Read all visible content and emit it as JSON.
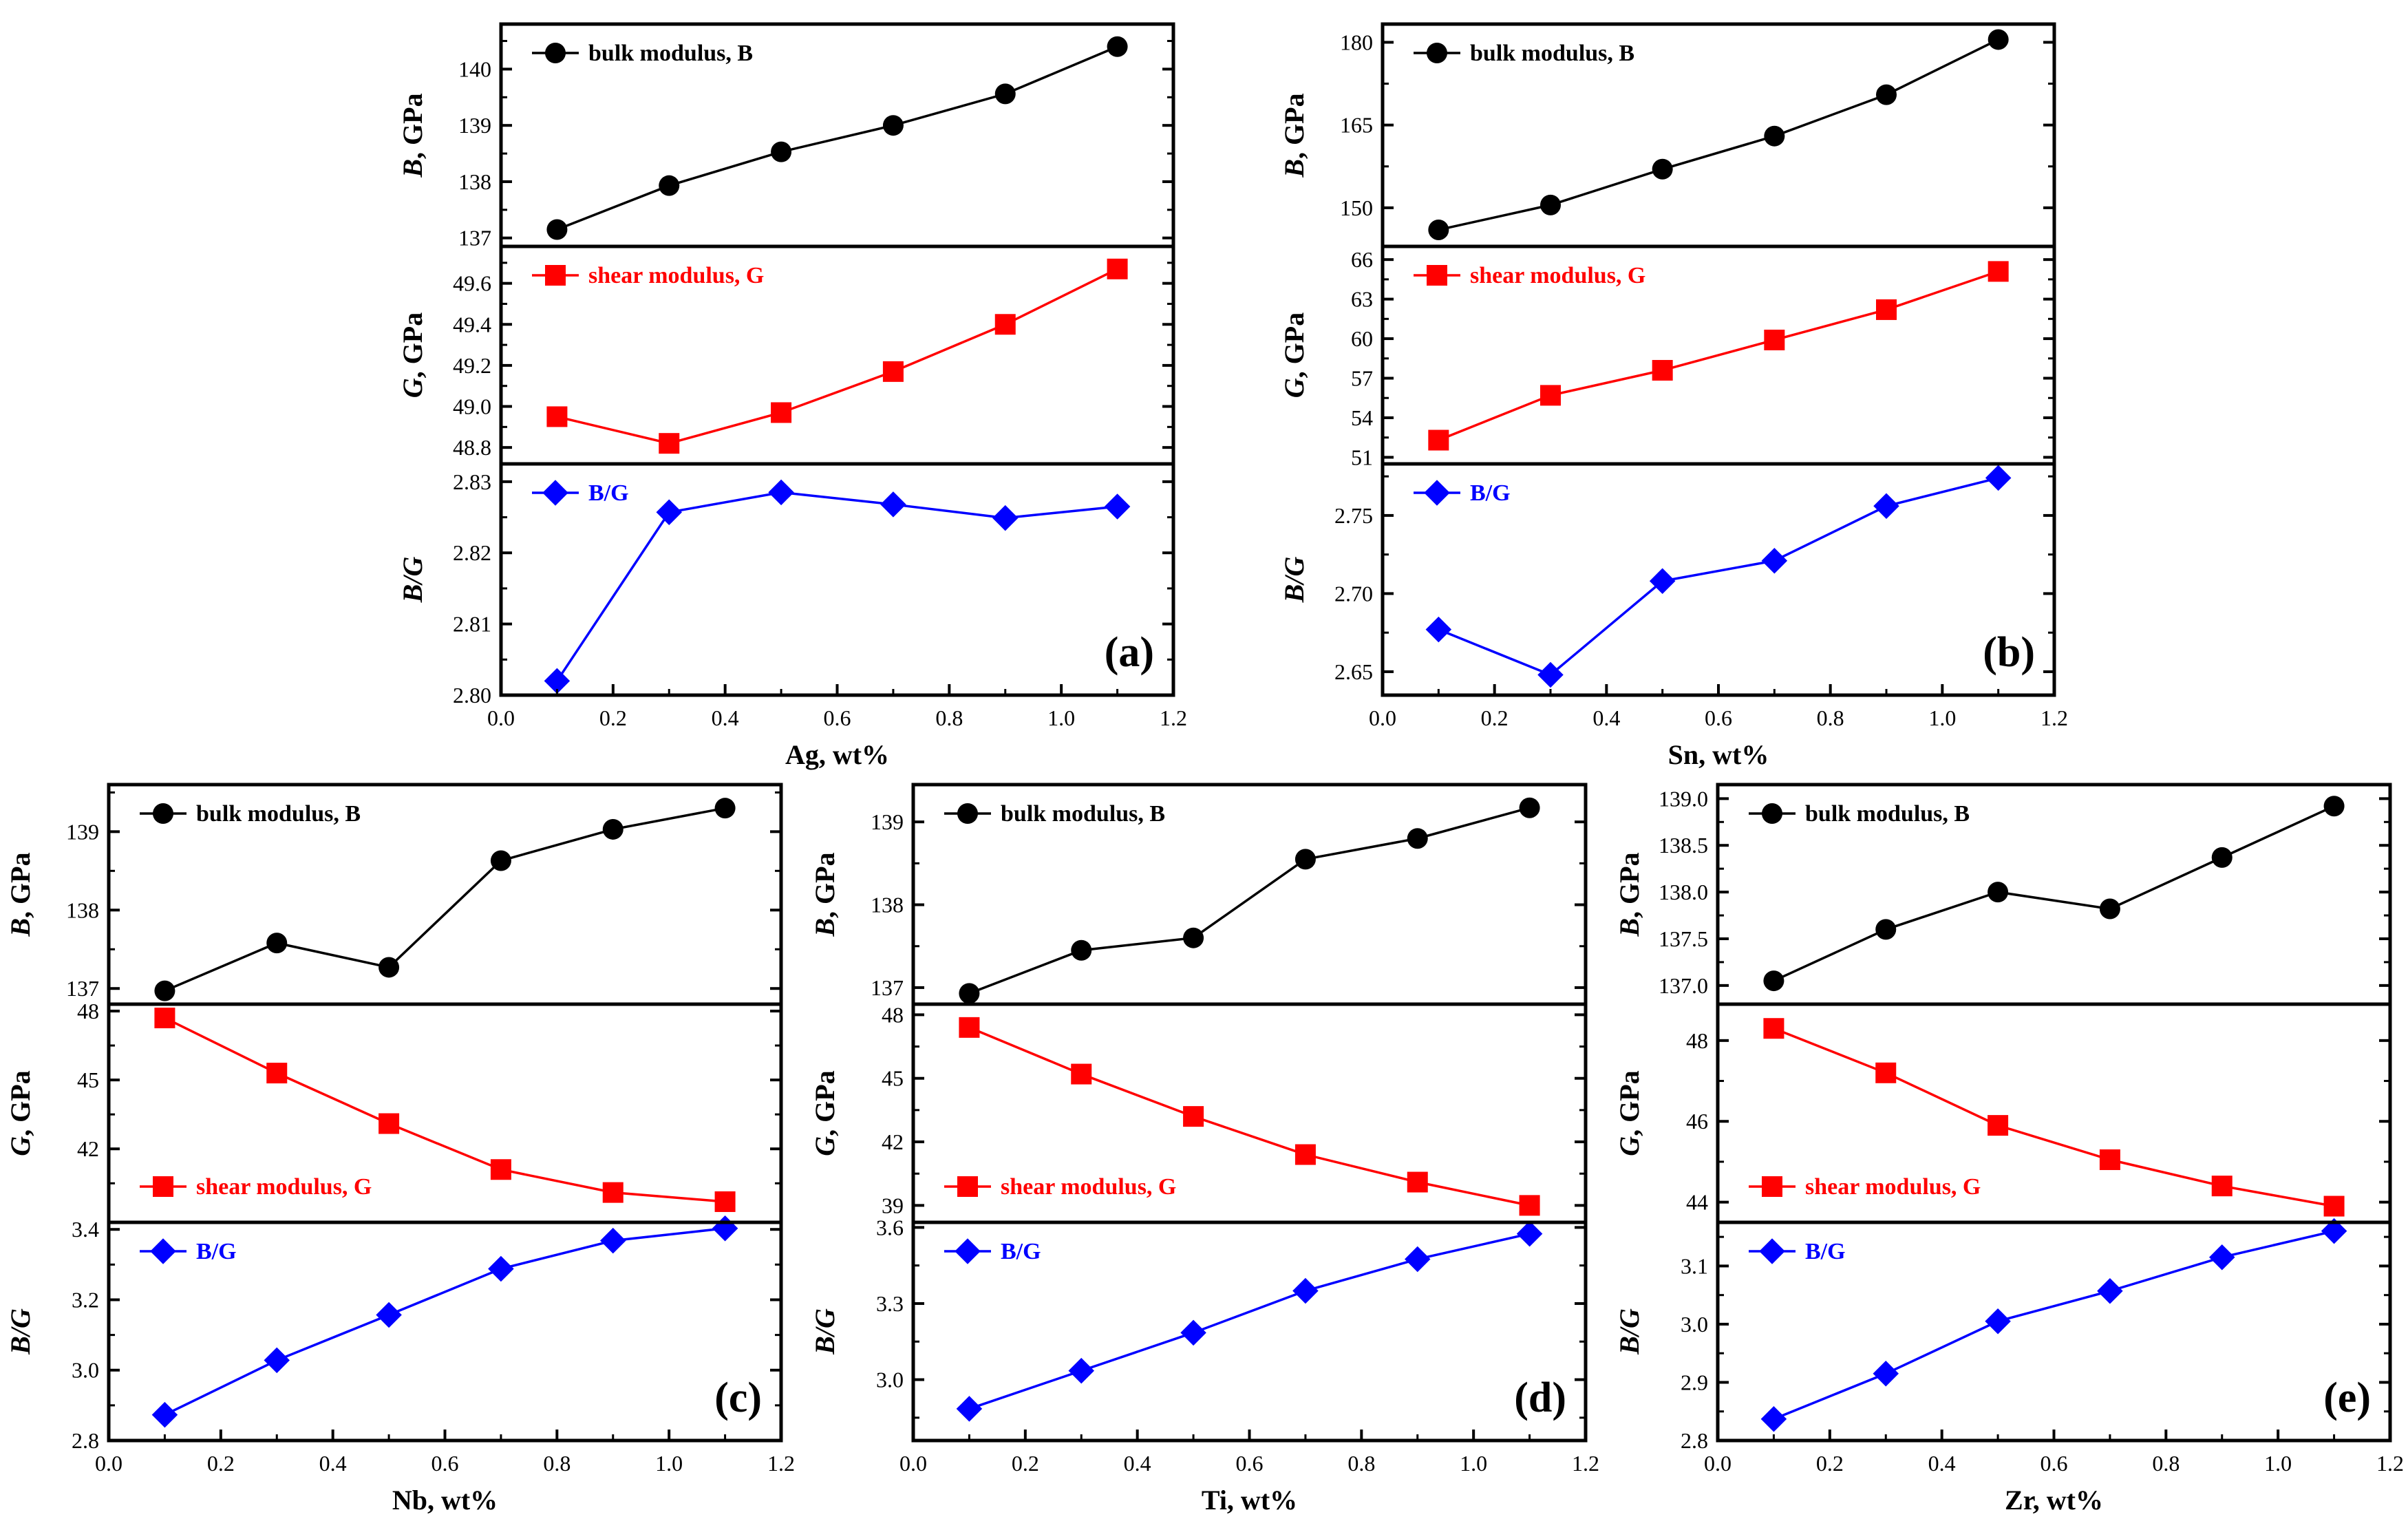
{
  "figure_title": "",
  "colors": {
    "B": "#000000",
    "G": "#ff0000",
    "BG": "#0000ff"
  },
  "chart_data": [
    {
      "type": "line",
      "panel_label": "(a)",
      "xlabel": "Ag, wt%",
      "xlim": [
        0.0,
        1.2
      ],
      "xticks": [
        "0.0",
        "0.2",
        "0.4",
        "0.6",
        "0.8",
        "1.0",
        "1.2"
      ],
      "x": [
        0.1,
        0.3,
        0.5,
        0.7,
        0.9,
        1.1
      ],
      "subplots": [
        {
          "key": "B",
          "ylabel_main": "B",
          "ylabel_rest": ", GPa",
          "legend": "bulk modulus, B",
          "legend_pos": "top-left",
          "marker": "circle",
          "values": [
            137.15,
            137.93,
            138.53,
            139.0,
            139.56,
            140.4
          ],
          "ylim": [
            136.85,
            140.8
          ],
          "yticks": [
            "137",
            "138",
            "139",
            "140"
          ]
        },
        {
          "key": "G",
          "ylabel_main": "G",
          "ylabel_rest": ", GPa",
          "legend": "shear modulus, G",
          "legend_pos": "top-left",
          "marker": "square",
          "values": [
            48.95,
            48.82,
            48.97,
            49.17,
            49.4,
            49.67
          ],
          "ylim": [
            48.72,
            49.78
          ],
          "yticks": [
            "48.8",
            "49.0",
            "49.2",
            "49.4",
            "49.6"
          ]
        },
        {
          "key": "BG",
          "ylabel_main": "B/G",
          "ylabel_rest": "",
          "legend": "B/G",
          "legend_pos": "top-left",
          "marker": "diamond",
          "values": [
            2.802,
            2.8257,
            2.8285,
            2.8268,
            2.8249,
            2.8265
          ],
          "ylim": [
            2.8,
            2.8325
          ],
          "yticks": [
            "2.80",
            "2.81",
            "2.82",
            "2.83"
          ]
        }
      ]
    },
    {
      "type": "line",
      "panel_label": "(b)",
      "xlabel": "Sn, wt%",
      "xlim": [
        0.0,
        1.2
      ],
      "xticks": [
        "0.0",
        "0.2",
        "0.4",
        "0.6",
        "0.8",
        "1.0",
        "1.2"
      ],
      "x": [
        0.1,
        0.3,
        0.5,
        0.7,
        0.9,
        1.1
      ],
      "subplots": [
        {
          "key": "B",
          "ylabel_main": "B",
          "ylabel_rest": ", GPa",
          "legend": "bulk modulus, B",
          "legend_pos": "top-left",
          "marker": "circle",
          "values": [
            146.0,
            150.5,
            157.0,
            163.0,
            170.5,
            180.5
          ],
          "ylim": [
            143.0,
            183.3
          ],
          "yticks": [
            "150",
            "165",
            "180"
          ]
        },
        {
          "key": "G",
          "ylabel_main": "G",
          "ylabel_rest": ", GPa",
          "legend": "shear modulus, G",
          "legend_pos": "top-left",
          "marker": "square",
          "values": [
            52.3,
            55.7,
            57.6,
            59.9,
            62.2,
            65.1
          ],
          "ylim": [
            50.5,
            67.0
          ],
          "yticks": [
            "51",
            "54",
            "57",
            "60",
            "63",
            "66"
          ]
        },
        {
          "key": "BG",
          "ylabel_main": "B/G",
          "ylabel_rest": "",
          "legend": "B/G",
          "legend_pos": "top-left",
          "marker": "diamond",
          "values": [
            2.677,
            2.648,
            2.708,
            2.721,
            2.756,
            2.774
          ],
          "ylim": [
            2.635,
            2.783
          ],
          "yticks": [
            "2.65",
            "2.70",
            "2.75"
          ]
        }
      ]
    },
    {
      "type": "line",
      "panel_label": "(c)",
      "xlabel": "Nb, wt%",
      "xlim": [
        0.0,
        1.2
      ],
      "xticks": [
        "0.0",
        "0.2",
        "0.4",
        "0.6",
        "0.8",
        "1.0",
        "1.2"
      ],
      "x": [
        0.1,
        0.3,
        0.5,
        0.7,
        0.9,
        1.1
      ],
      "subplots": [
        {
          "key": "B",
          "ylabel_main": "B",
          "ylabel_rest": ", GPa",
          "legend": "bulk modulus, B",
          "legend_pos": "top-left",
          "marker": "circle",
          "values": [
            136.97,
            137.58,
            137.27,
            138.63,
            139.03,
            139.3
          ],
          "ylim": [
            136.8,
            139.6
          ],
          "yticks": [
            "137",
            "138",
            "139"
          ]
        },
        {
          "key": "G",
          "ylabel_main": "G",
          "ylabel_rest": ", GPa",
          "legend": "shear modulus, G",
          "legend_pos": "bottom-left",
          "marker": "square",
          "values": [
            47.7,
            45.3,
            43.1,
            41.1,
            40.1,
            39.7
          ],
          "ylim": [
            38.8,
            48.3
          ],
          "yticks": [
            "42",
            "45",
            "48"
          ]
        },
        {
          "key": "BG",
          "ylabel_main": "B/G",
          "ylabel_rest": "",
          "legend": "B/G",
          "legend_pos": "top-left",
          "marker": "diamond",
          "values": [
            2.873,
            3.028,
            3.157,
            3.288,
            3.368,
            3.403
          ],
          "ylim": [
            2.8,
            3.42
          ],
          "yticks": [
            "2.8",
            "3.0",
            "3.2",
            "3.4"
          ]
        }
      ]
    },
    {
      "type": "line",
      "panel_label": "(d)",
      "xlabel": "Ti, wt%",
      "xlim": [
        0.0,
        1.2
      ],
      "xticks": [
        "0.0",
        "0.2",
        "0.4",
        "0.6",
        "0.8",
        "1.0",
        "1.2"
      ],
      "x": [
        0.1,
        0.3,
        0.5,
        0.7,
        0.9,
        1.1
      ],
      "subplots": [
        {
          "key": "B",
          "ylabel_main": "B",
          "ylabel_rest": ", GPa",
          "legend": "bulk modulus, B",
          "legend_pos": "top-left",
          "marker": "circle",
          "values": [
            136.93,
            137.45,
            137.6,
            138.55,
            138.8,
            139.17
          ],
          "ylim": [
            136.8,
            139.45
          ],
          "yticks": [
            "137",
            "138",
            "139"
          ]
        },
        {
          "key": "G",
          "ylabel_main": "G",
          "ylabel_rest": ", GPa",
          "legend": "shear modulus, G",
          "legend_pos": "bottom-left",
          "marker": "square",
          "values": [
            47.4,
            45.2,
            43.2,
            41.4,
            40.1,
            39.0
          ],
          "ylim": [
            38.2,
            48.5
          ],
          "yticks": [
            "39",
            "42",
            "45",
            "48"
          ]
        },
        {
          "key": "BG",
          "ylabel_main": "B/G",
          "ylabel_rest": "",
          "legend": "B/G",
          "legend_pos": "top-left",
          "marker": "diamond",
          "values": [
            2.885,
            3.035,
            3.185,
            3.35,
            3.475,
            3.575
          ],
          "ylim": [
            2.76,
            3.62
          ],
          "yticks": [
            "3.0",
            "3.3",
            "3.6"
          ]
        }
      ]
    },
    {
      "type": "line",
      "panel_label": "(e)",
      "xlabel": "Zr, wt%",
      "xlim": [
        0.0,
        1.2
      ],
      "xticks": [
        "0.0",
        "0.2",
        "0.4",
        "0.6",
        "0.8",
        "1.0",
        "1.2"
      ],
      "x": [
        0.1,
        0.3,
        0.5,
        0.7,
        0.9,
        1.1
      ],
      "subplots": [
        {
          "key": "B",
          "ylabel_main": "B",
          "ylabel_rest": ", GPa",
          "legend": "bulk modulus, B",
          "legend_pos": "top-left",
          "marker": "circle",
          "values": [
            137.05,
            137.6,
            138.0,
            137.82,
            138.37,
            138.92
          ],
          "ylim": [
            136.8,
            139.15
          ],
          "yticks": [
            "137.0",
            "137.5",
            "138.0",
            "138.5",
            "139.0"
          ]
        },
        {
          "key": "G",
          "ylabel_main": "G",
          "ylabel_rest": ", GPa",
          "legend": "shear modulus, G",
          "legend_pos": "bottom-left",
          "marker": "square",
          "values": [
            48.3,
            47.2,
            45.9,
            45.05,
            44.4,
            43.9
          ],
          "ylim": [
            43.5,
            48.9
          ],
          "yticks": [
            "44",
            "46",
            "48"
          ]
        },
        {
          "key": "BG",
          "ylabel_main": "B/G",
          "ylabel_rest": "",
          "legend": "B/G",
          "legend_pos": "top-left",
          "marker": "diamond",
          "values": [
            2.837,
            2.915,
            3.005,
            3.057,
            3.115,
            3.16
          ],
          "ylim": [
            2.8,
            3.175
          ],
          "yticks": [
            "2.8",
            "2.9",
            "3.0",
            "3.1"
          ]
        }
      ]
    }
  ]
}
